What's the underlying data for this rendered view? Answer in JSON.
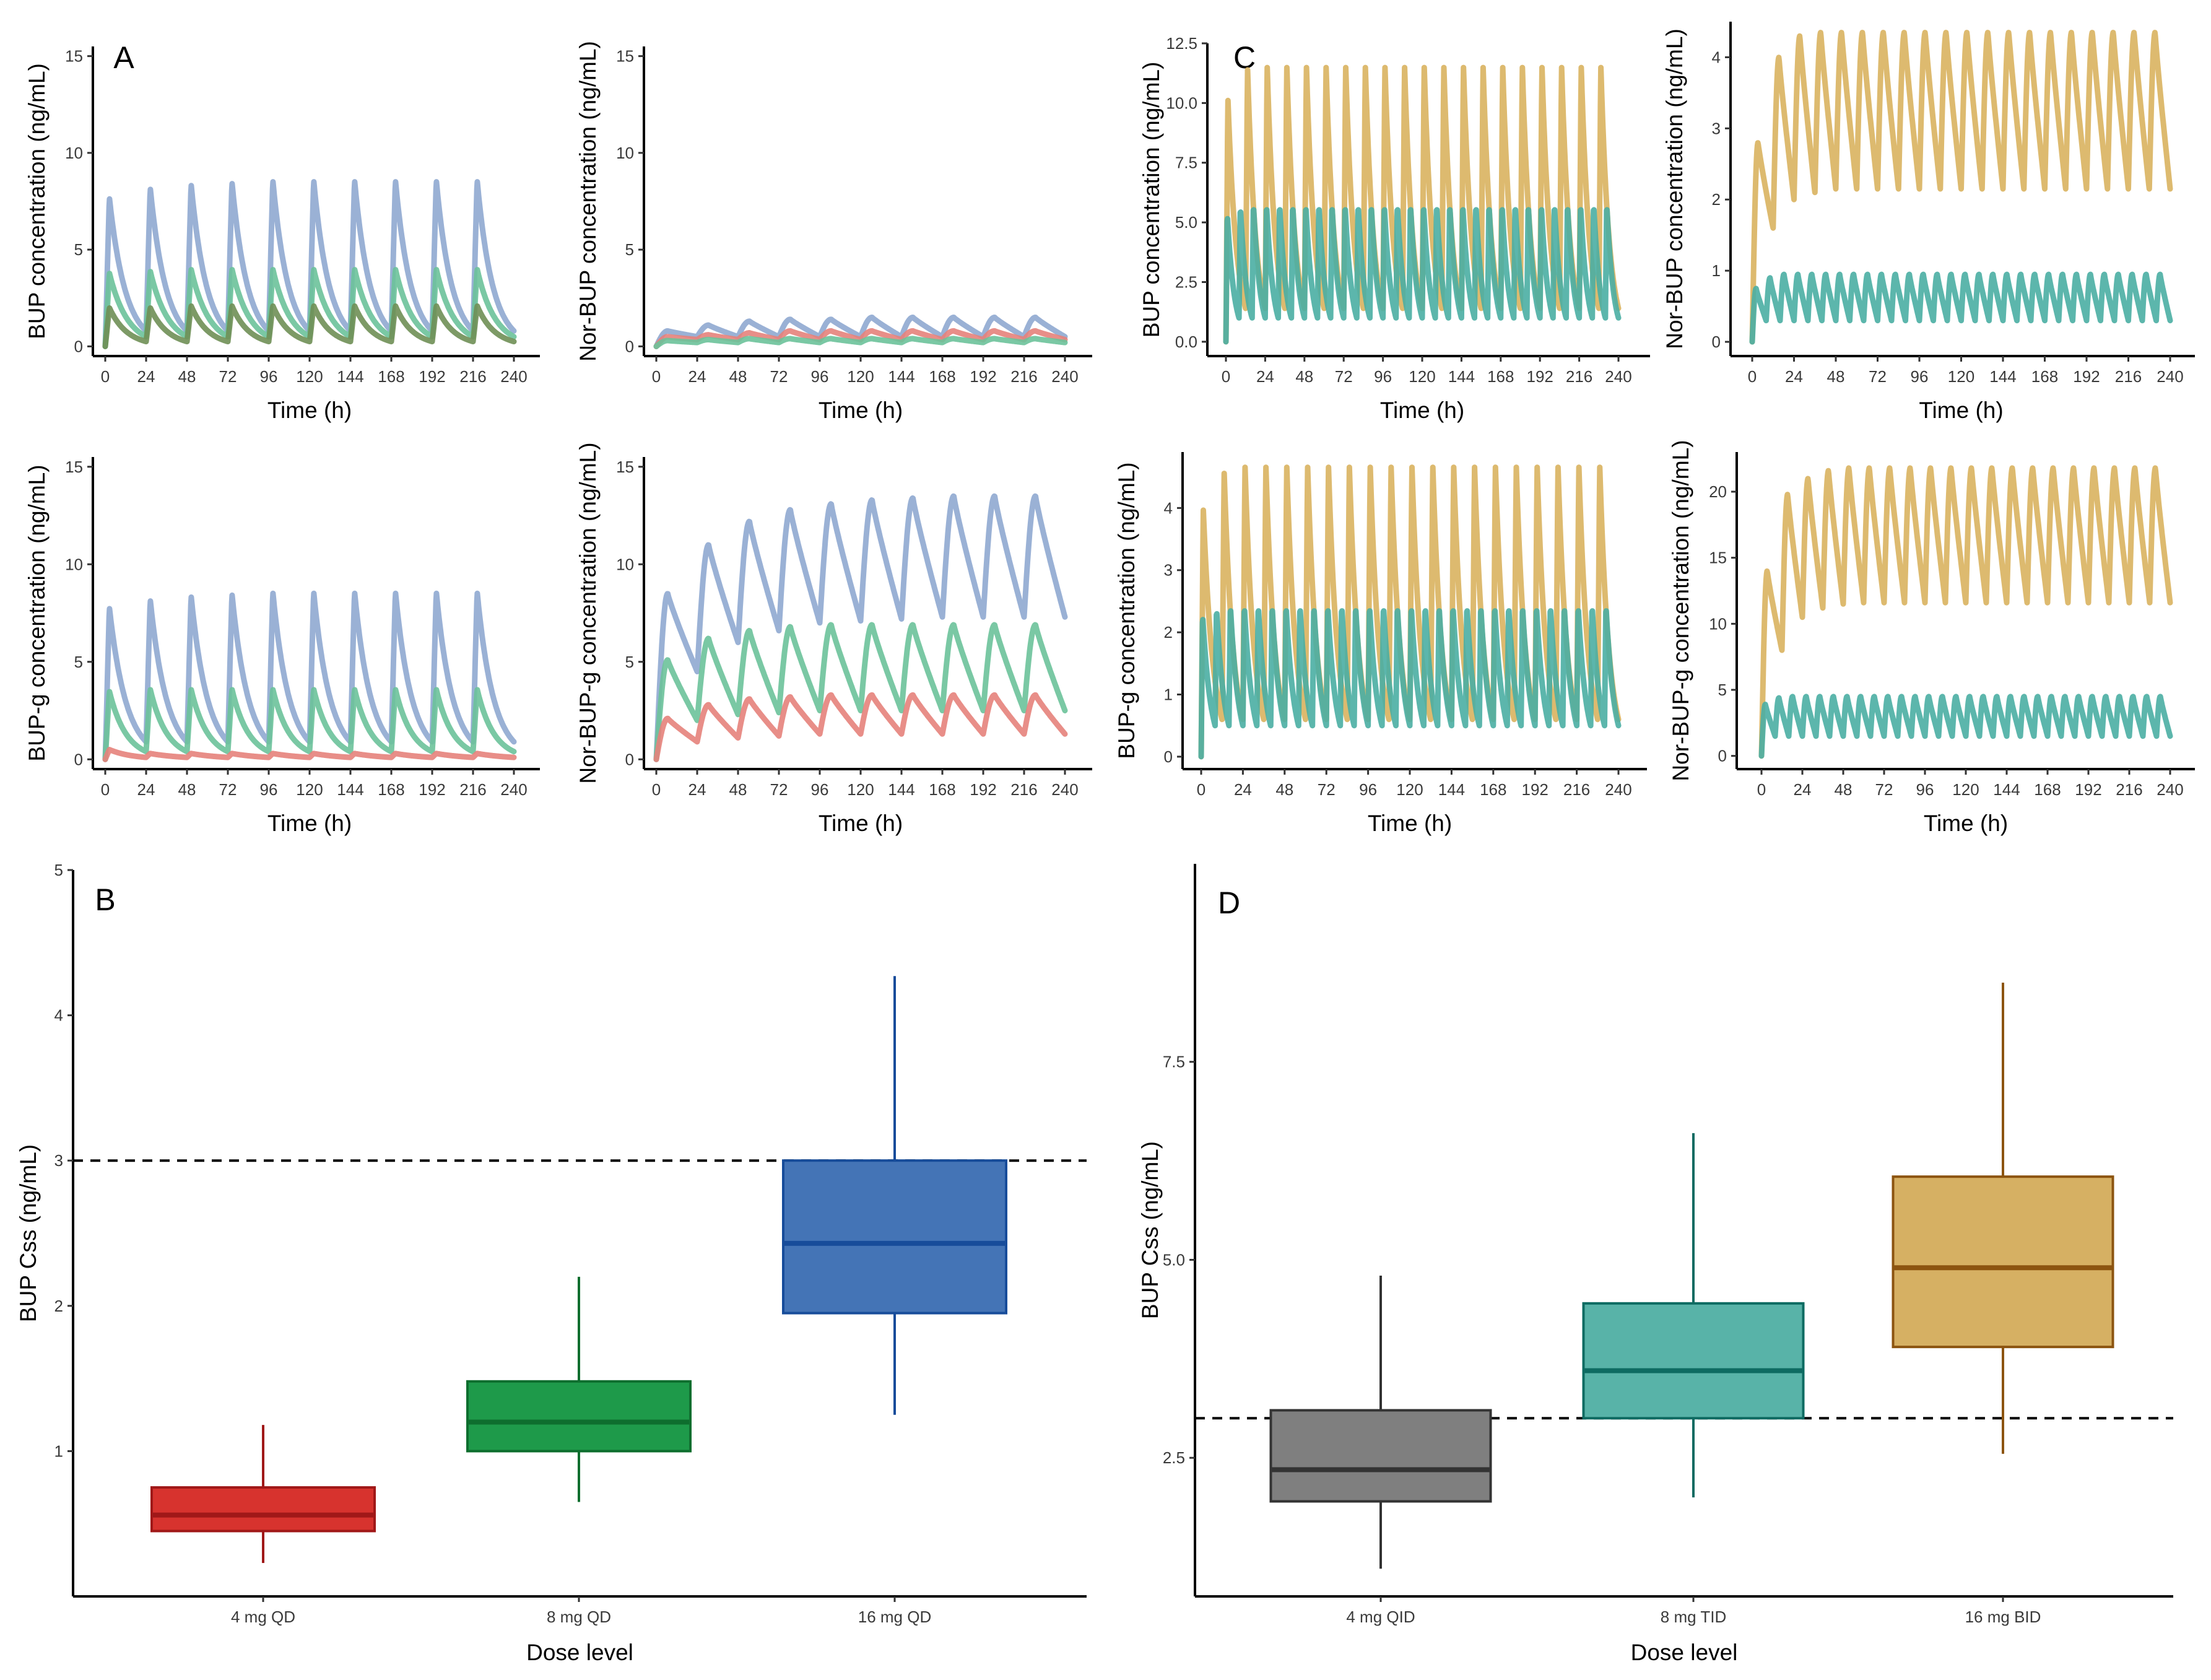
{
  "figure": {
    "panel_letters": [
      "A",
      "B",
      "C",
      "D"
    ]
  },
  "colors": {
    "blue_line": "#8fa9d0",
    "green_line": "#6cc29a",
    "red_line": "#e5827b",
    "olive_line": "#6f8f55",
    "gold_line": "#d9b25f",
    "teal_line": "#4aaea3",
    "box_red_fill": "#d7332e",
    "box_red_stroke": "#a01818",
    "box_green_fill": "#1e9a4a",
    "box_green_stroke": "#0e6e2e",
    "box_blue_fill": "#4474b6",
    "box_blue_stroke": "#174c9a",
    "box_grey_fill": "#7f7f7f",
    "box_grey_stroke": "#333333",
    "box_teal_fill": "#58b3a8",
    "box_teal_stroke": "#0e6b62",
    "box_gold_fill": "#d6b063",
    "box_gold_stroke": "#8c5410"
  },
  "chart_data": [
    {
      "id": "A1",
      "type": "line",
      "panel_label": "A",
      "xlabel": "Time (h)",
      "ylabel": "BUP concentration (ng/mL)",
      "xlim": [
        0,
        240
      ],
      "ylim": [
        -0.5,
        15.5
      ],
      "xticks": [
        0,
        24,
        48,
        72,
        96,
        120,
        144,
        168,
        192,
        216,
        240
      ],
      "yticks": [
        0,
        5,
        10,
        15
      ],
      "series": [
        {
          "name": "blue",
          "color": "#8fa9d0",
          "model": "pulse",
          "tau": 24,
          "peaks": [
            7.7,
            8.2,
            8.4,
            8.5,
            8.6,
            8.6,
            8.6,
            8.6,
            8.6,
            8.6
          ],
          "trough": 0.8
        },
        {
          "name": "green",
          "color": "#6cc29a",
          "model": "pulse",
          "tau": 24,
          "peaks": [
            3.8,
            3.9,
            4.0,
            4.0,
            4.0,
            4.0,
            4.0,
            4.0,
            4.0,
            4.0
          ],
          "trough": 0.5
        },
        {
          "name": "olive",
          "color": "#6f8f55",
          "model": "pulse",
          "tau": 24,
          "peaks": [
            2.0,
            2.0,
            2.1,
            2.1,
            2.1,
            2.1,
            2.1,
            2.1,
            2.1,
            2.1
          ],
          "trough": 0.25
        }
      ]
    },
    {
      "id": "A2",
      "type": "line",
      "panel_label": "",
      "xlabel": "Time (h)",
      "ylabel": "Nor-BUP concentration (ng/mL)",
      "xlim": [
        0,
        240
      ],
      "ylim": [
        -0.5,
        15.5
      ],
      "xticks": [
        0,
        24,
        48,
        72,
        96,
        120,
        144,
        168,
        192,
        216,
        240
      ],
      "yticks": [
        0,
        5,
        10,
        15
      ],
      "series": [
        {
          "name": "blue",
          "color": "#8fa9d0",
          "model": "wave",
          "tau": 24,
          "peaks": [
            0.8,
            1.1,
            1.3,
            1.4,
            1.4,
            1.5,
            1.5,
            1.5,
            1.5,
            1.5
          ],
          "trough": 0.5,
          "start": 0
        },
        {
          "name": "red",
          "color": "#e5827b",
          "model": "wave",
          "tau": 24,
          "peaks": [
            0.5,
            0.6,
            0.7,
            0.8,
            0.8,
            0.8,
            0.8,
            0.8,
            0.8,
            0.8
          ],
          "trough": 0.35,
          "start": 0
        },
        {
          "name": "green",
          "color": "#6cc29a",
          "model": "wave",
          "tau": 24,
          "peaks": [
            0.3,
            0.35,
            0.4,
            0.4,
            0.4,
            0.4,
            0.4,
            0.4,
            0.4,
            0.4
          ],
          "trough": 0.2,
          "start": 0
        }
      ]
    },
    {
      "id": "A3",
      "type": "line",
      "panel_label": "",
      "xlabel": "Time (h)",
      "ylabel": "BUP-g concentration (ng/mL)",
      "xlim": [
        0,
        240
      ],
      "ylim": [
        -0.5,
        15.5
      ],
      "xticks": [
        0,
        24,
        48,
        72,
        96,
        120,
        144,
        168,
        192,
        216,
        240
      ],
      "yticks": [
        0,
        5,
        10,
        15
      ],
      "series": [
        {
          "name": "blue",
          "color": "#8fa9d0",
          "model": "pulse",
          "tau": 24,
          "peaks": [
            7.8,
            8.2,
            8.4,
            8.5,
            8.6,
            8.6,
            8.6,
            8.6,
            8.6,
            8.6
          ],
          "trough": 0.9
        },
        {
          "name": "green",
          "color": "#6cc29a",
          "model": "pulse",
          "tau": 24,
          "peaks": [
            3.5,
            3.6,
            3.6,
            3.6,
            3.6,
            3.6,
            3.6,
            3.6,
            3.6,
            3.6
          ],
          "trough": 0.4
        },
        {
          "name": "red",
          "color": "#e5827b",
          "model": "pulse",
          "tau": 24,
          "peaks": [
            0.5,
            0.3,
            0.3,
            0.3,
            0.3,
            0.3,
            0.3,
            0.3,
            0.3,
            0.3
          ],
          "trough": 0.1
        }
      ]
    },
    {
      "id": "A4",
      "type": "line",
      "panel_label": "",
      "xlabel": "Time (h)",
      "ylabel": "Nor-BUP-g concentration (ng/mL)",
      "xlim": [
        0,
        240
      ],
      "ylim": [
        -0.5,
        15.5
      ],
      "xticks": [
        0,
        24,
        48,
        72,
        96,
        120,
        144,
        168,
        192,
        216,
        240
      ],
      "yticks": [
        0,
        5,
        10,
        15
      ],
      "series": [
        {
          "name": "blue",
          "color": "#8fa9d0",
          "model": "wave",
          "tau": 24,
          "peaks": [
            8.5,
            11.0,
            12.2,
            12.8,
            13.1,
            13.3,
            13.4,
            13.5,
            13.5,
            13.5
          ],
          "trough": 4.5,
          "troughs": [
            4.5,
            6.0,
            6.6,
            7.0,
            7.1,
            7.2,
            7.3,
            7.3,
            7.3,
            7.3
          ],
          "start": 0
        },
        {
          "name": "green",
          "color": "#6cc29a",
          "model": "wave",
          "tau": 24,
          "peaks": [
            5.1,
            6.2,
            6.6,
            6.8,
            6.9,
            6.9,
            6.9,
            6.9,
            6.9,
            6.9
          ],
          "trough": 2.0,
          "troughs": [
            2.0,
            2.3,
            2.4,
            2.5,
            2.5,
            2.5,
            2.5,
            2.5,
            2.5,
            2.5
          ],
          "start": 0
        },
        {
          "name": "red",
          "color": "#e5827b",
          "model": "wave",
          "tau": 24,
          "peaks": [
            2.1,
            2.8,
            3.1,
            3.2,
            3.3,
            3.3,
            3.3,
            3.3,
            3.3,
            3.3
          ],
          "trough": 0.9,
          "troughs": [
            0.9,
            1.1,
            1.2,
            1.3,
            1.3,
            1.3,
            1.3,
            1.3,
            1.3,
            1.3
          ],
          "start": 0
        }
      ]
    },
    {
      "id": "C1",
      "type": "line",
      "panel_label": "C",
      "xlabel": "Time (h)",
      "ylabel": "BUP concentration (ng/mL)",
      "xlim": [
        0,
        240
      ],
      "ylim": [
        -0.6,
        12.5
      ],
      "xticks": [
        0,
        24,
        48,
        72,
        96,
        120,
        144,
        168,
        192,
        216,
        240
      ],
      "yticks": [
        0.0,
        2.5,
        5.0,
        7.5,
        10.0,
        12.5
      ],
      "ytick_labels": [
        "0.0",
        "2.5",
        "5.0",
        "7.5",
        "10.0",
        "12.5"
      ],
      "series": [
        {
          "name": "gold",
          "color": "#d9b25f",
          "model": "pulse",
          "tau": 12,
          "peaks": [
            10.2,
            11.5,
            11.6,
            11.6,
            11.6,
            11.6,
            11.6,
            11.6,
            11.6,
            11.6,
            11.6,
            11.6,
            11.6,
            11.6,
            11.6,
            11.6,
            11.6,
            11.6,
            11.6,
            11.6
          ],
          "trough": 1.4
        },
        {
          "name": "teal",
          "color": "#4aaea3",
          "model": "pulse",
          "tau": 8,
          "peaks": [
            5.4,
            5.7,
            5.8,
            5.8,
            5.8,
            5.8,
            5.8,
            5.8,
            5.8,
            5.8,
            5.8,
            5.8,
            5.8,
            5.8,
            5.8,
            5.8,
            5.8,
            5.8,
            5.8,
            5.8,
            5.8,
            5.8,
            5.8,
            5.8,
            5.8,
            5.8,
            5.8,
            5.8,
            5.8,
            5.8
          ],
          "trough": 1.0
        }
      ]
    },
    {
      "id": "C2",
      "type": "line",
      "panel_label": "",
      "xlabel": "Time (h)",
      "ylabel": "Nor-BUP concentration (ng/mL)",
      "xlim": [
        0,
        240
      ],
      "ylim": [
        -0.2,
        4.5
      ],
      "xticks": [
        0,
        24,
        48,
        72,
        96,
        120,
        144,
        168,
        192,
        216,
        240
      ],
      "yticks": [
        0,
        1,
        2,
        3,
        4
      ],
      "series": [
        {
          "name": "gold",
          "color": "#d9b25f",
          "model": "wave",
          "tau": 12,
          "peaks": [
            2.8,
            4.0,
            4.3,
            4.35,
            4.35,
            4.35,
            4.35,
            4.35,
            4.35,
            4.35,
            4.35,
            4.35,
            4.35,
            4.35,
            4.35,
            4.35,
            4.35,
            4.35,
            4.35,
            4.35
          ],
          "trough": 1.6,
          "troughs": [
            1.6,
            2.0,
            2.1,
            2.15,
            2.15,
            2.15,
            2.15,
            2.15,
            2.15,
            2.15,
            2.15,
            2.15,
            2.15,
            2.15,
            2.15,
            2.15,
            2.15,
            2.15,
            2.15,
            2.15
          ],
          "start": 0
        },
        {
          "name": "teal",
          "color": "#4aaea3",
          "model": "wave",
          "tau": 8,
          "peaks": [
            0.75,
            0.9,
            0.95,
            0.95,
            0.95,
            0.95,
            0.95,
            0.95,
            0.95,
            0.95,
            0.95,
            0.95,
            0.95,
            0.95,
            0.95,
            0.95,
            0.95,
            0.95,
            0.95,
            0.95,
            0.95,
            0.95,
            0.95,
            0.95,
            0.95,
            0.95,
            0.95,
            0.95,
            0.95,
            0.95
          ],
          "trough": 0.3,
          "start": 0
        }
      ]
    },
    {
      "id": "C3",
      "type": "line",
      "panel_label": "",
      "xlabel": "Time (h)",
      "ylabel": "BUP-g concentration (ng/mL)",
      "xlim": [
        0,
        240
      ],
      "ylim": [
        -0.2,
        4.9
      ],
      "xticks": [
        0,
        24,
        48,
        72,
        96,
        120,
        144,
        168,
        192,
        216,
        240
      ],
      "yticks": [
        0,
        1,
        2,
        3,
        4
      ],
      "series": [
        {
          "name": "gold",
          "color": "#d9b25f",
          "model": "pulse",
          "tau": 12,
          "peaks": [
            4.0,
            4.6,
            4.7,
            4.7,
            4.7,
            4.7,
            4.7,
            4.7,
            4.7,
            4.7,
            4.7,
            4.7,
            4.7,
            4.7,
            4.7,
            4.7,
            4.7,
            4.7,
            4.7,
            4.7
          ],
          "trough": 0.6
        },
        {
          "name": "teal",
          "color": "#4aaea3",
          "model": "pulse",
          "tau": 8,
          "peaks": [
            2.3,
            2.4,
            2.45,
            2.45,
            2.45,
            2.45,
            2.45,
            2.45,
            2.45,
            2.45,
            2.45,
            2.45,
            2.45,
            2.45,
            2.45,
            2.45,
            2.45,
            2.45,
            2.45,
            2.45,
            2.45,
            2.45,
            2.45,
            2.45,
            2.45,
            2.45,
            2.45,
            2.45,
            2.45,
            2.45
          ],
          "trough": 0.5
        }
      ]
    },
    {
      "id": "C4",
      "type": "line",
      "panel_label": "",
      "xlabel": "Time (h)",
      "ylabel": "Nor-BUP-g concentration (ng/mL)",
      "xlim": [
        0,
        240
      ],
      "ylim": [
        -1,
        23
      ],
      "xticks": [
        0,
        24,
        48,
        72,
        96,
        120,
        144,
        168,
        192,
        216,
        240
      ],
      "yticks": [
        0,
        5,
        10,
        15,
        20
      ],
      "series": [
        {
          "name": "gold",
          "color": "#d9b25f",
          "model": "wave",
          "tau": 12,
          "peaks": [
            14.0,
            19.8,
            21.0,
            21.6,
            21.8,
            21.8,
            21.8,
            21.8,
            21.8,
            21.8,
            21.8,
            21.8,
            21.8,
            21.8,
            21.8,
            21.8,
            21.8,
            21.8,
            21.8,
            21.8
          ],
          "trough": 8.0,
          "troughs": [
            8.0,
            10.5,
            11.2,
            11.5,
            11.6,
            11.6,
            11.6,
            11.6,
            11.6,
            11.6,
            11.6,
            11.6,
            11.6,
            11.6,
            11.6,
            11.6,
            11.6,
            11.6,
            11.6,
            11.6
          ],
          "start": 0
        },
        {
          "name": "teal",
          "color": "#4aaea3",
          "model": "wave",
          "tau": 8,
          "peaks": [
            3.9,
            4.4,
            4.5,
            4.5,
            4.5,
            4.5,
            4.5,
            4.5,
            4.5,
            4.5,
            4.5,
            4.5,
            4.5,
            4.5,
            4.5,
            4.5,
            4.5,
            4.5,
            4.5,
            4.5,
            4.5,
            4.5,
            4.5,
            4.5,
            4.5,
            4.5,
            4.5,
            4.5,
            4.5,
            4.5
          ],
          "trough": 1.5,
          "start": 0
        }
      ]
    },
    {
      "id": "B",
      "type": "box",
      "panel_label": "B",
      "xlabel": "Dose level",
      "ylabel": "BUP Css (ng/mL)",
      "ylim": [
        0,
        5
      ],
      "yticks": [
        1,
        2,
        3,
        4,
        5
      ],
      "reference_line": 3,
      "categories": [
        "4 mg QD",
        "8 mg QD",
        "16 mg QD"
      ],
      "boxes": [
        {
          "label": "4 mg QD",
          "whisker_low": 0.23,
          "q1": 0.45,
          "median": 0.56,
          "q3": 0.75,
          "whisker_high": 1.18,
          "fill": "#d7332e",
          "stroke": "#a01818"
        },
        {
          "label": "8 mg QD",
          "whisker_low": 0.65,
          "q1": 1.0,
          "median": 1.2,
          "q3": 1.48,
          "whisker_high": 2.2,
          "fill": "#1e9a4a",
          "stroke": "#0e6e2e"
        },
        {
          "label": "16 mg QD",
          "whisker_low": 1.25,
          "q1": 1.95,
          "median": 2.43,
          "q3": 3.0,
          "whisker_high": 4.27,
          "fill": "#4474b6",
          "stroke": "#174c9a"
        }
      ]
    },
    {
      "id": "D",
      "type": "box",
      "panel_label": "D",
      "xlabel": "Dose level",
      "ylabel": "BUP Css (ng/mL)",
      "ylim": [
        0.75,
        10.0
      ],
      "yticks": [
        2.5,
        5.0,
        7.5
      ],
      "ytick_labels": [
        "2.5",
        "5.0",
        "7.5"
      ],
      "reference_line": 3,
      "categories": [
        "4 mg QID",
        "8 mg TID",
        "16 mg BID"
      ],
      "boxes": [
        {
          "label": "4 mg QID",
          "whisker_low": 1.1,
          "q1": 1.95,
          "median": 2.35,
          "q3": 3.1,
          "whisker_high": 4.8,
          "fill": "#7f7f7f",
          "stroke": "#333333"
        },
        {
          "label": "8 mg TID",
          "whisker_low": 2.0,
          "q1": 3.0,
          "median": 3.6,
          "q3": 4.45,
          "whisker_high": 6.6,
          "fill": "#58b3a8",
          "stroke": "#0e6b62"
        },
        {
          "label": "16 mg BID",
          "whisker_low": 2.55,
          "q1": 3.9,
          "median": 4.9,
          "q3": 6.05,
          "whisker_high": 8.5,
          "fill": "#d6b063",
          "stroke": "#8c5410"
        }
      ]
    }
  ]
}
